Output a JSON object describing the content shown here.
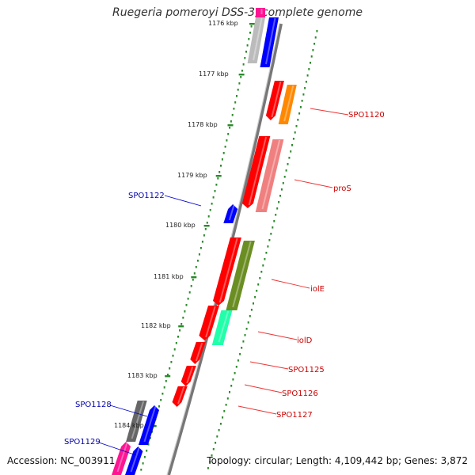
{
  "title": "Ruegeria pomeroyi DSS-3, complete genome",
  "footer": {
    "accession": "Accession: NC_003911",
    "topology": "Topology: circular; Length: 4,109,442 bp; Genes: 3,872"
  },
  "colors": {
    "backbone": "#888888",
    "ruler": "#2a8a2a",
    "red": "#ff0000",
    "blue": "#0000ff",
    "orange": "#ff8800",
    "salmon": "#f08080",
    "olive": "#6b8e23",
    "mint": "#22ffaa",
    "gray": "#bbbbbb",
    "dark_gray": "#666666",
    "pink": "#ff1493",
    "label_red": "#cc0000",
    "label_blue": "#0000aa"
  },
  "ruler_labels": [
    {
      "id": "1176",
      "text": "1176 kbp"
    },
    {
      "id": "1177",
      "text": "1177 kbp"
    },
    {
      "id": "1178",
      "text": "1178 kbp"
    },
    {
      "id": "1179",
      "text": "1179 kbp"
    },
    {
      "id": "1180",
      "text": "1180 kbp"
    },
    {
      "id": "1181",
      "text": "1181 kbp"
    },
    {
      "id": "1182",
      "text": "1182 kbp"
    },
    {
      "id": "1183",
      "text": "1183 kbp"
    },
    {
      "id": "1184",
      "text": "1184 kbp"
    }
  ],
  "gene_labels": [
    {
      "id": "SPO1120",
      "text": "SPO1120",
      "color": "label_red"
    },
    {
      "id": "proS",
      "text": "proS",
      "color": "label_red"
    },
    {
      "id": "SPO1122",
      "text": "SPO1122",
      "color": "label_blue"
    },
    {
      "id": "iolE",
      "text": "iolE",
      "color": "label_red"
    },
    {
      "id": "iolD",
      "text": "iolD",
      "color": "label_red"
    },
    {
      "id": "SPO1125",
      "text": "SPO1125",
      "color": "label_red"
    },
    {
      "id": "SPO1126",
      "text": "SPO1126",
      "color": "label_red"
    },
    {
      "id": "SPO1127",
      "text": "SPO1127",
      "color": "label_red"
    },
    {
      "id": "SPO1128",
      "text": "SPO1128",
      "color": "label_blue"
    },
    {
      "id": "SPO1129",
      "text": "SPO1129",
      "color": "label_blue"
    }
  ]
}
